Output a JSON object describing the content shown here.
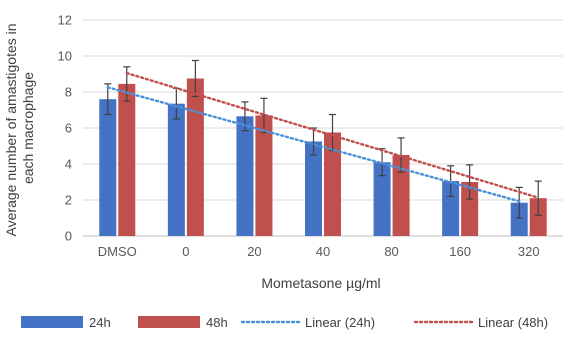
{
  "chart_data": {
    "type": "bar",
    "xlabel": "Mometasone µg/ml",
    "ylabel": "Average number of amastigotes in each macrophage",
    "ylim": [
      0,
      12
    ],
    "yticks": [
      0,
      2,
      4,
      6,
      8,
      10,
      12
    ],
    "categories": [
      "DMSO",
      "0",
      "20",
      "40",
      "80",
      "160",
      "320"
    ],
    "grid": true,
    "legend_position": "bottom",
    "series": [
      {
        "name": "24h",
        "color": "#4472C4",
        "values": [
          7.6,
          7.35,
          6.65,
          5.25,
          4.1,
          3.05,
          1.85
        ],
        "errors": [
          0.85,
          0.85,
          0.8,
          0.75,
          0.75,
          0.85,
          0.85
        ]
      },
      {
        "name": "48h",
        "color": "#C0504D",
        "values": [
          8.45,
          8.75,
          6.7,
          5.75,
          4.5,
          3.0,
          2.1
        ],
        "errors": [
          0.95,
          1.0,
          0.95,
          1.0,
          0.95,
          0.95,
          0.95
        ]
      }
    ],
    "trendlines": [
      {
        "name": "Linear (24h)",
        "series": "24h",
        "color": "#4A90D9",
        "style": "dotted",
        "start": 8.26,
        "end": 1.93
      },
      {
        "name": "Linear (48h)",
        "series": "48h",
        "color": "#C0504D",
        "style": "dotted",
        "start": 9.05,
        "end": 2.13
      }
    ]
  }
}
